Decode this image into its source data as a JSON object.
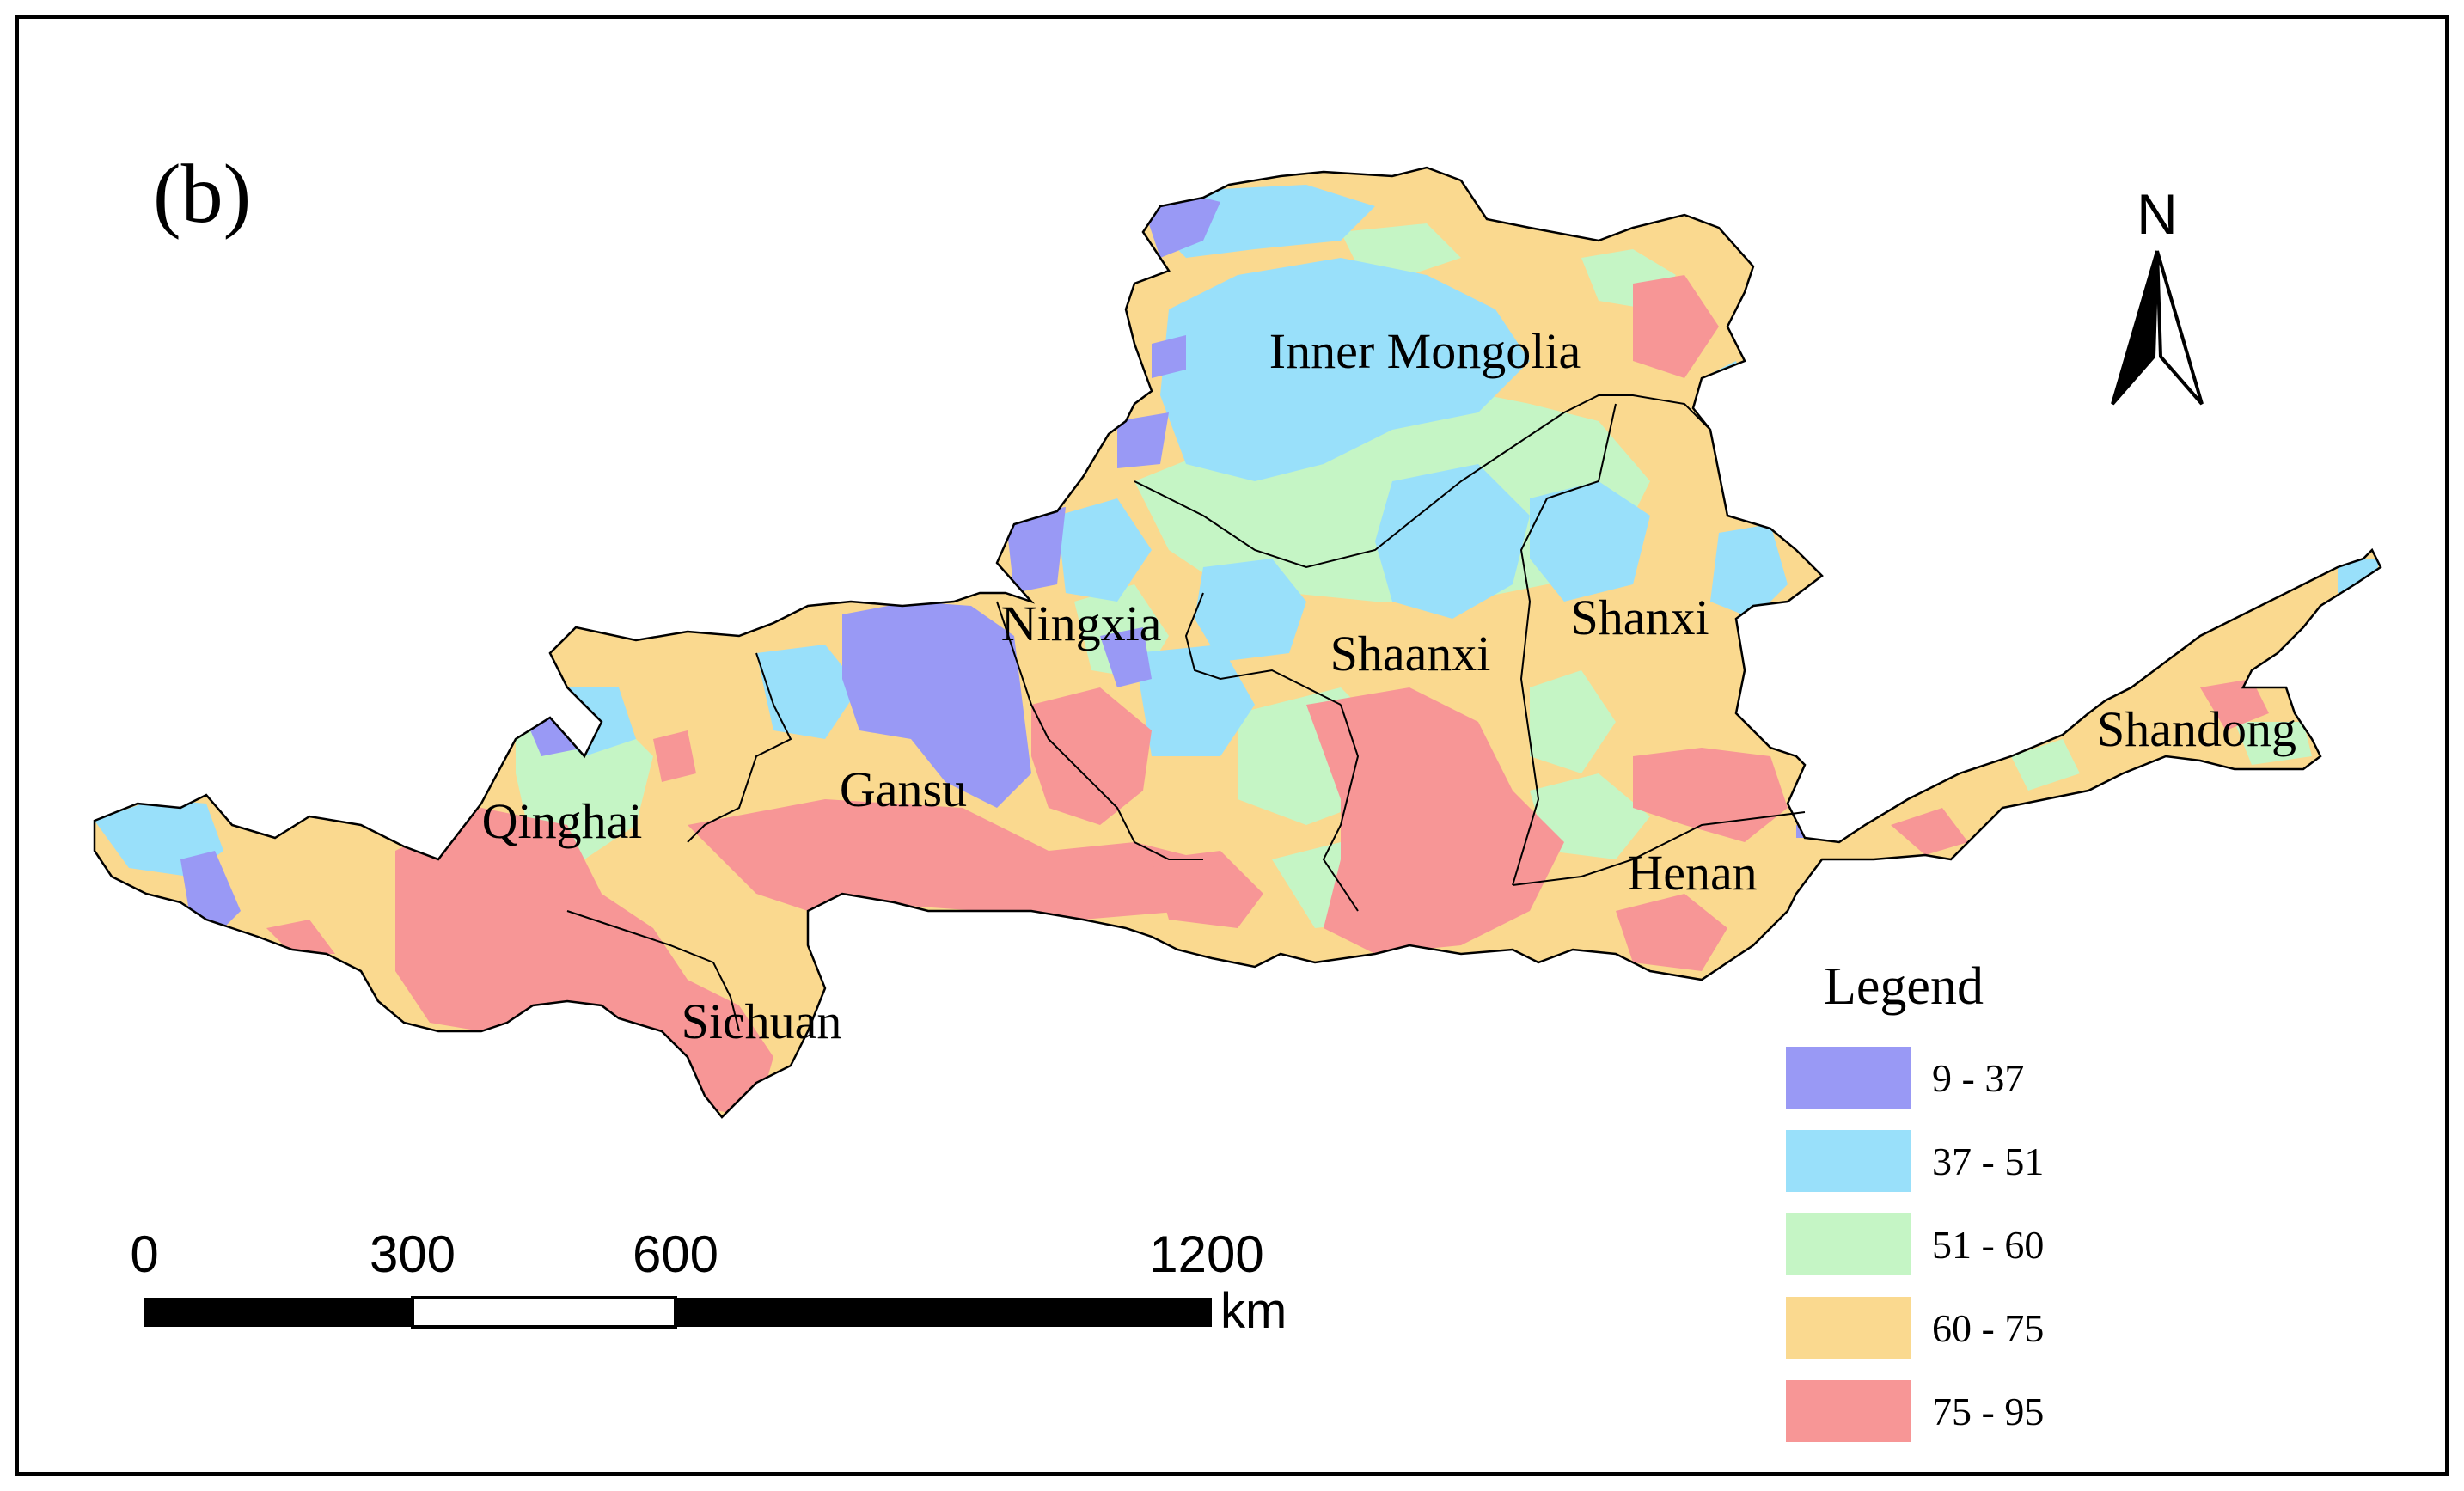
{
  "panel_label": "(b)",
  "north_label": "N",
  "regions": [
    {
      "id": "inner-mongolia",
      "name": "Inner Mongolia"
    },
    {
      "id": "ningxia",
      "name": "Ningxia"
    },
    {
      "id": "shaanxi",
      "name": "Shaanxi"
    },
    {
      "id": "shanxi",
      "name": "Shanxi"
    },
    {
      "id": "shandong",
      "name": "Shandong"
    },
    {
      "id": "gansu",
      "name": "Gansu"
    },
    {
      "id": "qinghai",
      "name": "Qinghai"
    },
    {
      "id": "henan",
      "name": "Henan"
    },
    {
      "id": "sichuan",
      "name": "Sichuan"
    }
  ],
  "legend": {
    "title": "Legend",
    "classes": [
      {
        "label": "9 - 37",
        "color": "#9999f5"
      },
      {
        "label": "37 - 51",
        "color": "#99e0fa"
      },
      {
        "label": "51 - 60",
        "color": "#c5f5c5"
      },
      {
        "label": "60 - 75",
        "color": "#fad98f"
      },
      {
        "label": "75 - 95",
        "color": "#f79696"
      }
    ]
  },
  "scale_bar": {
    "ticks": [
      "0",
      "300",
      "600",
      "1200"
    ],
    "unit": "km"
  }
}
